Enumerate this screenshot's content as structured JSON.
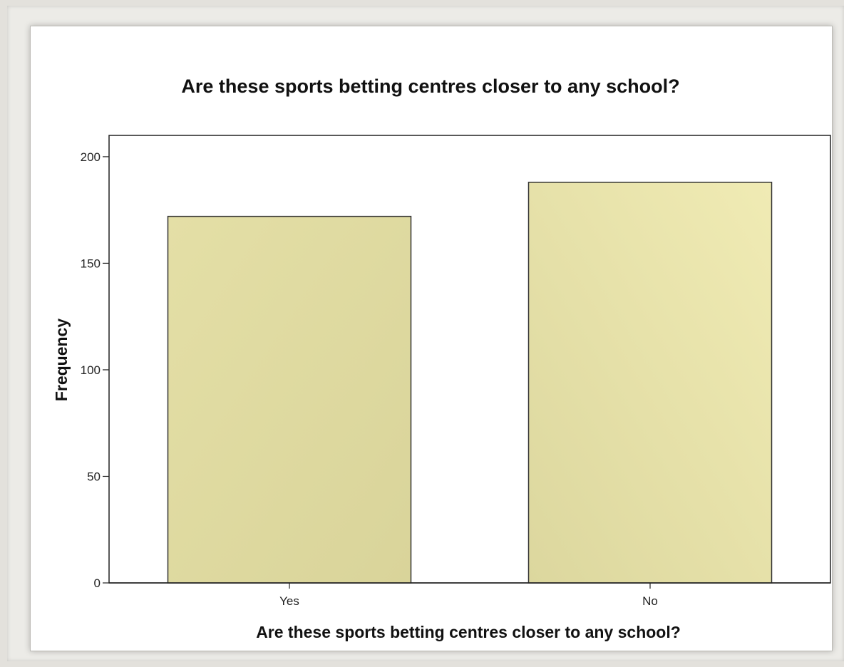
{
  "chart_data": {
    "type": "bar",
    "title": "Are these sports betting centres closer to any school?",
    "xlabel": "Are these sports betting centres closer to any school?",
    "ylabel": "Frequency",
    "categories": [
      "Yes",
      "No"
    ],
    "values": [
      172,
      188
    ],
    "ylim": [
      0,
      210
    ],
    "yticks": [
      0,
      50,
      100,
      150,
      200
    ],
    "grid": false,
    "legend": "none",
    "bar_color": "#e0dba0",
    "bar_stroke": "#333333"
  }
}
